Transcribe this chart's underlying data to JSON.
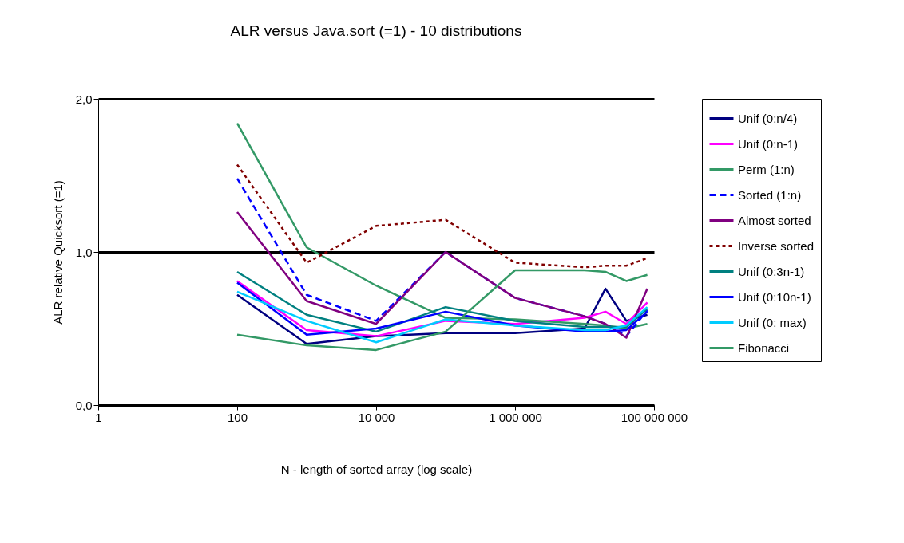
{
  "chart_data": {
    "type": "line",
    "title": "ALR versus Java.sort (=1) - 10 distributions",
    "xlabel": "N - length of sorted array (log scale)",
    "ylabel": "ALR  relative Quicksort (=1)",
    "x": [
      100,
      1000,
      10000,
      100000,
      1000000,
      10000000,
      20000000,
      40000000,
      80000000
    ],
    "log": "x",
    "xlim": [
      1,
      100000000
    ],
    "xticks": [
      1,
      100,
      {
        "value": 10000,
        "label": "10 000"
      },
      {
        "value": 1000000,
        "label": "1 000 000"
      },
      {
        "value": 100000000,
        "label": "100 000 000"
      }
    ],
    "ylim": [
      0,
      2
    ],
    "yticks": [
      {
        "value": 0,
        "label": "0,0"
      },
      {
        "value": 1,
        "label": "1,0"
      },
      {
        "value": 2,
        "label": "2,0"
      }
    ],
    "grid": "y",
    "legend": "right",
    "marker": "none",
    "series": [
      {
        "name": "Unif (0:n/4)",
        "color": "#000080",
        "line_style": "solid",
        "values": [
          0.72,
          0.4,
          0.45,
          0.47,
          0.47,
          0.5,
          0.76,
          0.55,
          0.59
        ]
      },
      {
        "name": "Unif (0:n-1)",
        "color": "#ff00ff",
        "line_style": "solid",
        "values": [
          0.81,
          0.49,
          0.45,
          0.55,
          0.53,
          0.57,
          0.61,
          0.53,
          0.67
        ]
      },
      {
        "name": "Perm (1:n)",
        "color": "#339966",
        "line_style": "solid",
        "values": [
          1.84,
          1.03,
          0.78,
          0.57,
          0.56,
          0.53,
          0.52,
          0.5,
          0.53
        ]
      },
      {
        "name": "Sorted (1:n)",
        "color": "#0000ff",
        "line_style": "dashed",
        "values": [
          1.48,
          0.72,
          0.55,
          1.0,
          0.7,
          0.58,
          0.53,
          0.45,
          0.62
        ]
      },
      {
        "name": "Almost sorted",
        "color": "#800080",
        "line_style": "solid",
        "values": [
          1.26,
          0.68,
          0.53,
          1.0,
          0.7,
          0.58,
          0.53,
          0.44,
          0.76
        ]
      },
      {
        "name": "Inverse sorted",
        "color": "#800000",
        "line_style": "dotted",
        "values": [
          1.57,
          0.93,
          1.17,
          1.21,
          0.93,
          0.9,
          0.91,
          0.91,
          0.96
        ]
      },
      {
        "name": "Unif (0:3n-1)",
        "color": "#008080",
        "line_style": "solid",
        "values": [
          0.87,
          0.59,
          0.48,
          0.64,
          0.55,
          0.51,
          0.51,
          0.51,
          0.63
        ]
      },
      {
        "name": "Unif (0:10n-1)",
        "color": "#0000ff",
        "line_style": "solid",
        "values": [
          0.8,
          0.46,
          0.5,
          0.61,
          0.52,
          0.48,
          0.48,
          0.49,
          0.61
        ]
      },
      {
        "name": "Unif (0: max)",
        "color": "#00ccff",
        "line_style": "solid",
        "values": [
          0.74,
          0.55,
          0.41,
          0.56,
          0.52,
          0.49,
          0.49,
          0.52,
          0.64
        ]
      },
      {
        "name": "Fibonacci",
        "color": "#339966",
        "line_style": "solid",
        "values": [
          0.46,
          0.39,
          0.36,
          0.48,
          0.88,
          0.88,
          0.87,
          0.81,
          0.85
        ]
      }
    ]
  }
}
